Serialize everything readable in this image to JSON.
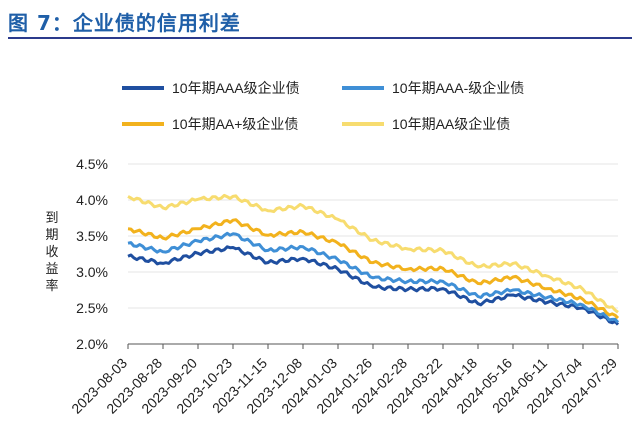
{
  "header": {
    "figure_title": "图 7：企业债的信用利差"
  },
  "chart_data": {
    "type": "line",
    "title": "图 7：企业债的信用利差",
    "xlabel": "",
    "ylabel": "到期收益率",
    "ylim": [
      2.0,
      4.5
    ],
    "yticks": [
      "2.0%",
      "2.5%",
      "3.0%",
      "3.5%",
      "4.0%",
      "4.5%"
    ],
    "ytick_values": [
      2.0,
      2.5,
      3.0,
      3.5,
      4.0,
      4.5
    ],
    "categories": [
      "2023-08-03",
      "2023-08-28",
      "2023-09-20",
      "2023-10-23",
      "2023-11-15",
      "2023-12-08",
      "2024-01-03",
      "2024-01-26",
      "2024-02-28",
      "2024-03-22",
      "2024-04-18",
      "2024-05-16",
      "2024-06-11",
      "2024-07-04",
      "2024-07-29"
    ],
    "legend": "top",
    "series": [
      {
        "name": "10年期AAA级企业债",
        "color": "#1f4fa0",
        "values": [
          3.22,
          3.12,
          3.26,
          3.34,
          3.13,
          3.19,
          3.04,
          2.79,
          2.76,
          2.77,
          2.56,
          2.68,
          2.58,
          2.5,
          2.27
        ]
      },
      {
        "name": "10年期AAA-级企业债",
        "color": "#3f8fd6",
        "values": [
          3.4,
          3.28,
          3.43,
          3.53,
          3.3,
          3.35,
          3.17,
          2.92,
          2.87,
          2.87,
          2.66,
          2.75,
          2.65,
          2.54,
          2.3
        ]
      },
      {
        "name": "10年期AA+级企业债",
        "color": "#f2b21d",
        "values": [
          3.6,
          3.47,
          3.6,
          3.72,
          3.51,
          3.56,
          3.4,
          3.13,
          3.04,
          3.05,
          2.84,
          2.93,
          2.77,
          2.62,
          2.36
        ]
      },
      {
        "name": "10年期AA级企业债",
        "color": "#f7dc6f",
        "values": [
          4.05,
          3.89,
          4.01,
          4.05,
          3.85,
          3.92,
          3.73,
          3.44,
          3.32,
          3.3,
          3.07,
          3.12,
          2.94,
          2.76,
          2.44
        ]
      }
    ]
  }
}
